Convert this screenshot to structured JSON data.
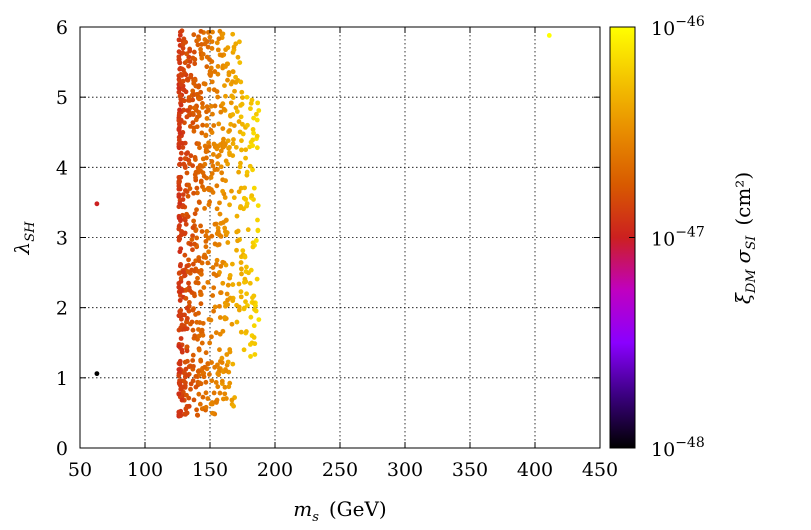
{
  "chart_data": {
    "type": "scatter",
    "xlabel_main": "m",
    "xlabel_sub": "s",
    "xlabel_unit": "(GeV)",
    "ylabel_main": "λ",
    "ylabel_sub": "SH",
    "colorbar_label_xi": "ξ",
    "colorbar_label_xi_sub": "DM",
    "colorbar_label_sigma": "σ",
    "colorbar_label_sigma_sub": "SI",
    "colorbar_label_unit": "(cm²)",
    "xlim": [
      50,
      450
    ],
    "ylim": [
      0,
      6
    ],
    "xticks": [
      "50",
      "100",
      "150",
      "200",
      "250",
      "300",
      "350",
      "400",
      "450"
    ],
    "yticks": [
      "0",
      "1",
      "2",
      "3",
      "4",
      "5",
      "6"
    ],
    "colorbar": {
      "scale": "log",
      "range_exp": [
        -48,
        -46
      ],
      "ticks": [
        {
          "base": "10",
          "exp": "−48",
          "value_exp": -48
        },
        {
          "base": "10",
          "exp": "−47",
          "value_exp": -47
        },
        {
          "base": "10",
          "exp": "−46",
          "value_exp": -46
        }
      ],
      "colors": [
        "#000000",
        "#3b0080",
        "#8a00ff",
        "#c000c0",
        "#cc2020",
        "#d85a00",
        "#e88c00",
        "#f4c400",
        "#ffff00"
      ]
    },
    "grid": true,
    "points": [
      {
        "x": 63,
        "y": 3.48,
        "c": -47.0
      },
      {
        "x": 63,
        "y": 1.06,
        "c": -48.0
      },
      {
        "x": 411,
        "y": 5.88,
        "c": -46.0
      }
    ],
    "cluster": {
      "x_range": [
        126,
        188
      ],
      "y_range": [
        0.45,
        5.95
      ],
      "color_exp_range": [
        -46.9,
        -46.15
      ]
    }
  }
}
